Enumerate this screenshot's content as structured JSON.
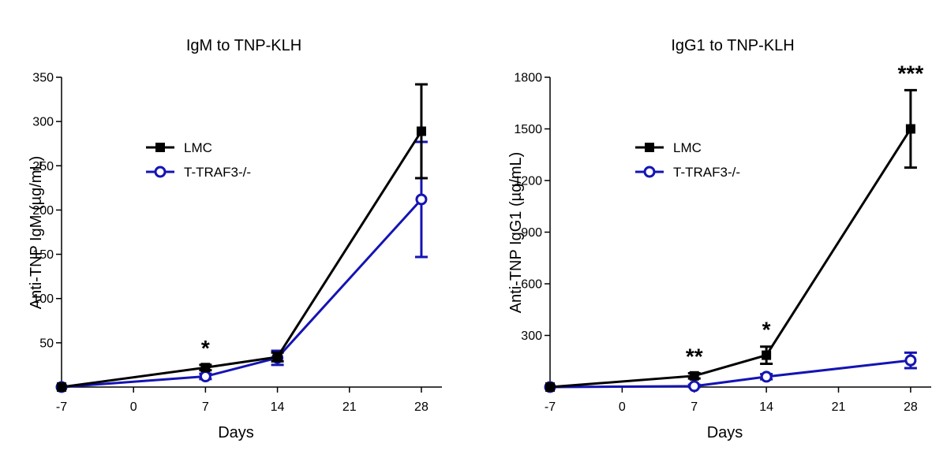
{
  "chart_data": [
    {
      "type": "line",
      "title": "IgM to TNP-KLH",
      "xlabel": "Days",
      "ylabel": "Anti-TNP IgM (µg/mL)",
      "xlim": [
        -7,
        30
      ],
      "ylim": [
        0,
        350
      ],
      "xticks": [
        "-7",
        "0",
        "7",
        "14",
        "21",
        "28"
      ],
      "yticks": [
        "50",
        "100",
        "150",
        "200",
        "250",
        "300",
        "350"
      ],
      "x": [
        -7,
        7,
        14,
        28
      ],
      "series": [
        {
          "name": "LMC",
          "color": "#000000",
          "marker": "filled-square",
          "values": [
            0,
            22,
            34,
            289
          ],
          "err": [
            0,
            3,
            5,
            53
          ]
        },
        {
          "name": "T-TRAF3-/-",
          "color": "#1414b4",
          "marker": "open-circle",
          "values": [
            0,
            12,
            33,
            212
          ],
          "err": [
            0,
            3,
            8,
            65
          ]
        }
      ],
      "annotations": [
        {
          "x": 7,
          "text": "*"
        }
      ],
      "legend": "upper-left"
    },
    {
      "type": "line",
      "title": "IgG1 to TNP-KLH",
      "xlabel": "Days",
      "ylabel": "Anti-TNP IgG1 (µg/mL)",
      "xlim": [
        -7,
        30
      ],
      "ylim": [
        0,
        1800
      ],
      "xticks": [
        "-7",
        "0",
        "7",
        "14",
        "21",
        "28"
      ],
      "yticks": [
        "300",
        "600",
        "900",
        "1200",
        "1500",
        "1800"
      ],
      "x": [
        -7,
        7,
        14,
        28
      ],
      "series": [
        {
          "name": "LMC",
          "color": "#000000",
          "marker": "filled-square",
          "values": [
            0,
            65,
            185,
            1500
          ],
          "err": [
            0,
            15,
            50,
            225
          ]
        },
        {
          "name": "T-TRAF3-/-",
          "color": "#1414b4",
          "marker": "open-circle",
          "values": [
            0,
            5,
            60,
            155
          ],
          "err": [
            0,
            8,
            15,
            45
          ]
        }
      ],
      "annotations": [
        {
          "x": 7,
          "text": "**"
        },
        {
          "x": 14,
          "text": "*"
        },
        {
          "x": 28,
          "text": "***"
        }
      ],
      "legend": "upper-left"
    }
  ]
}
